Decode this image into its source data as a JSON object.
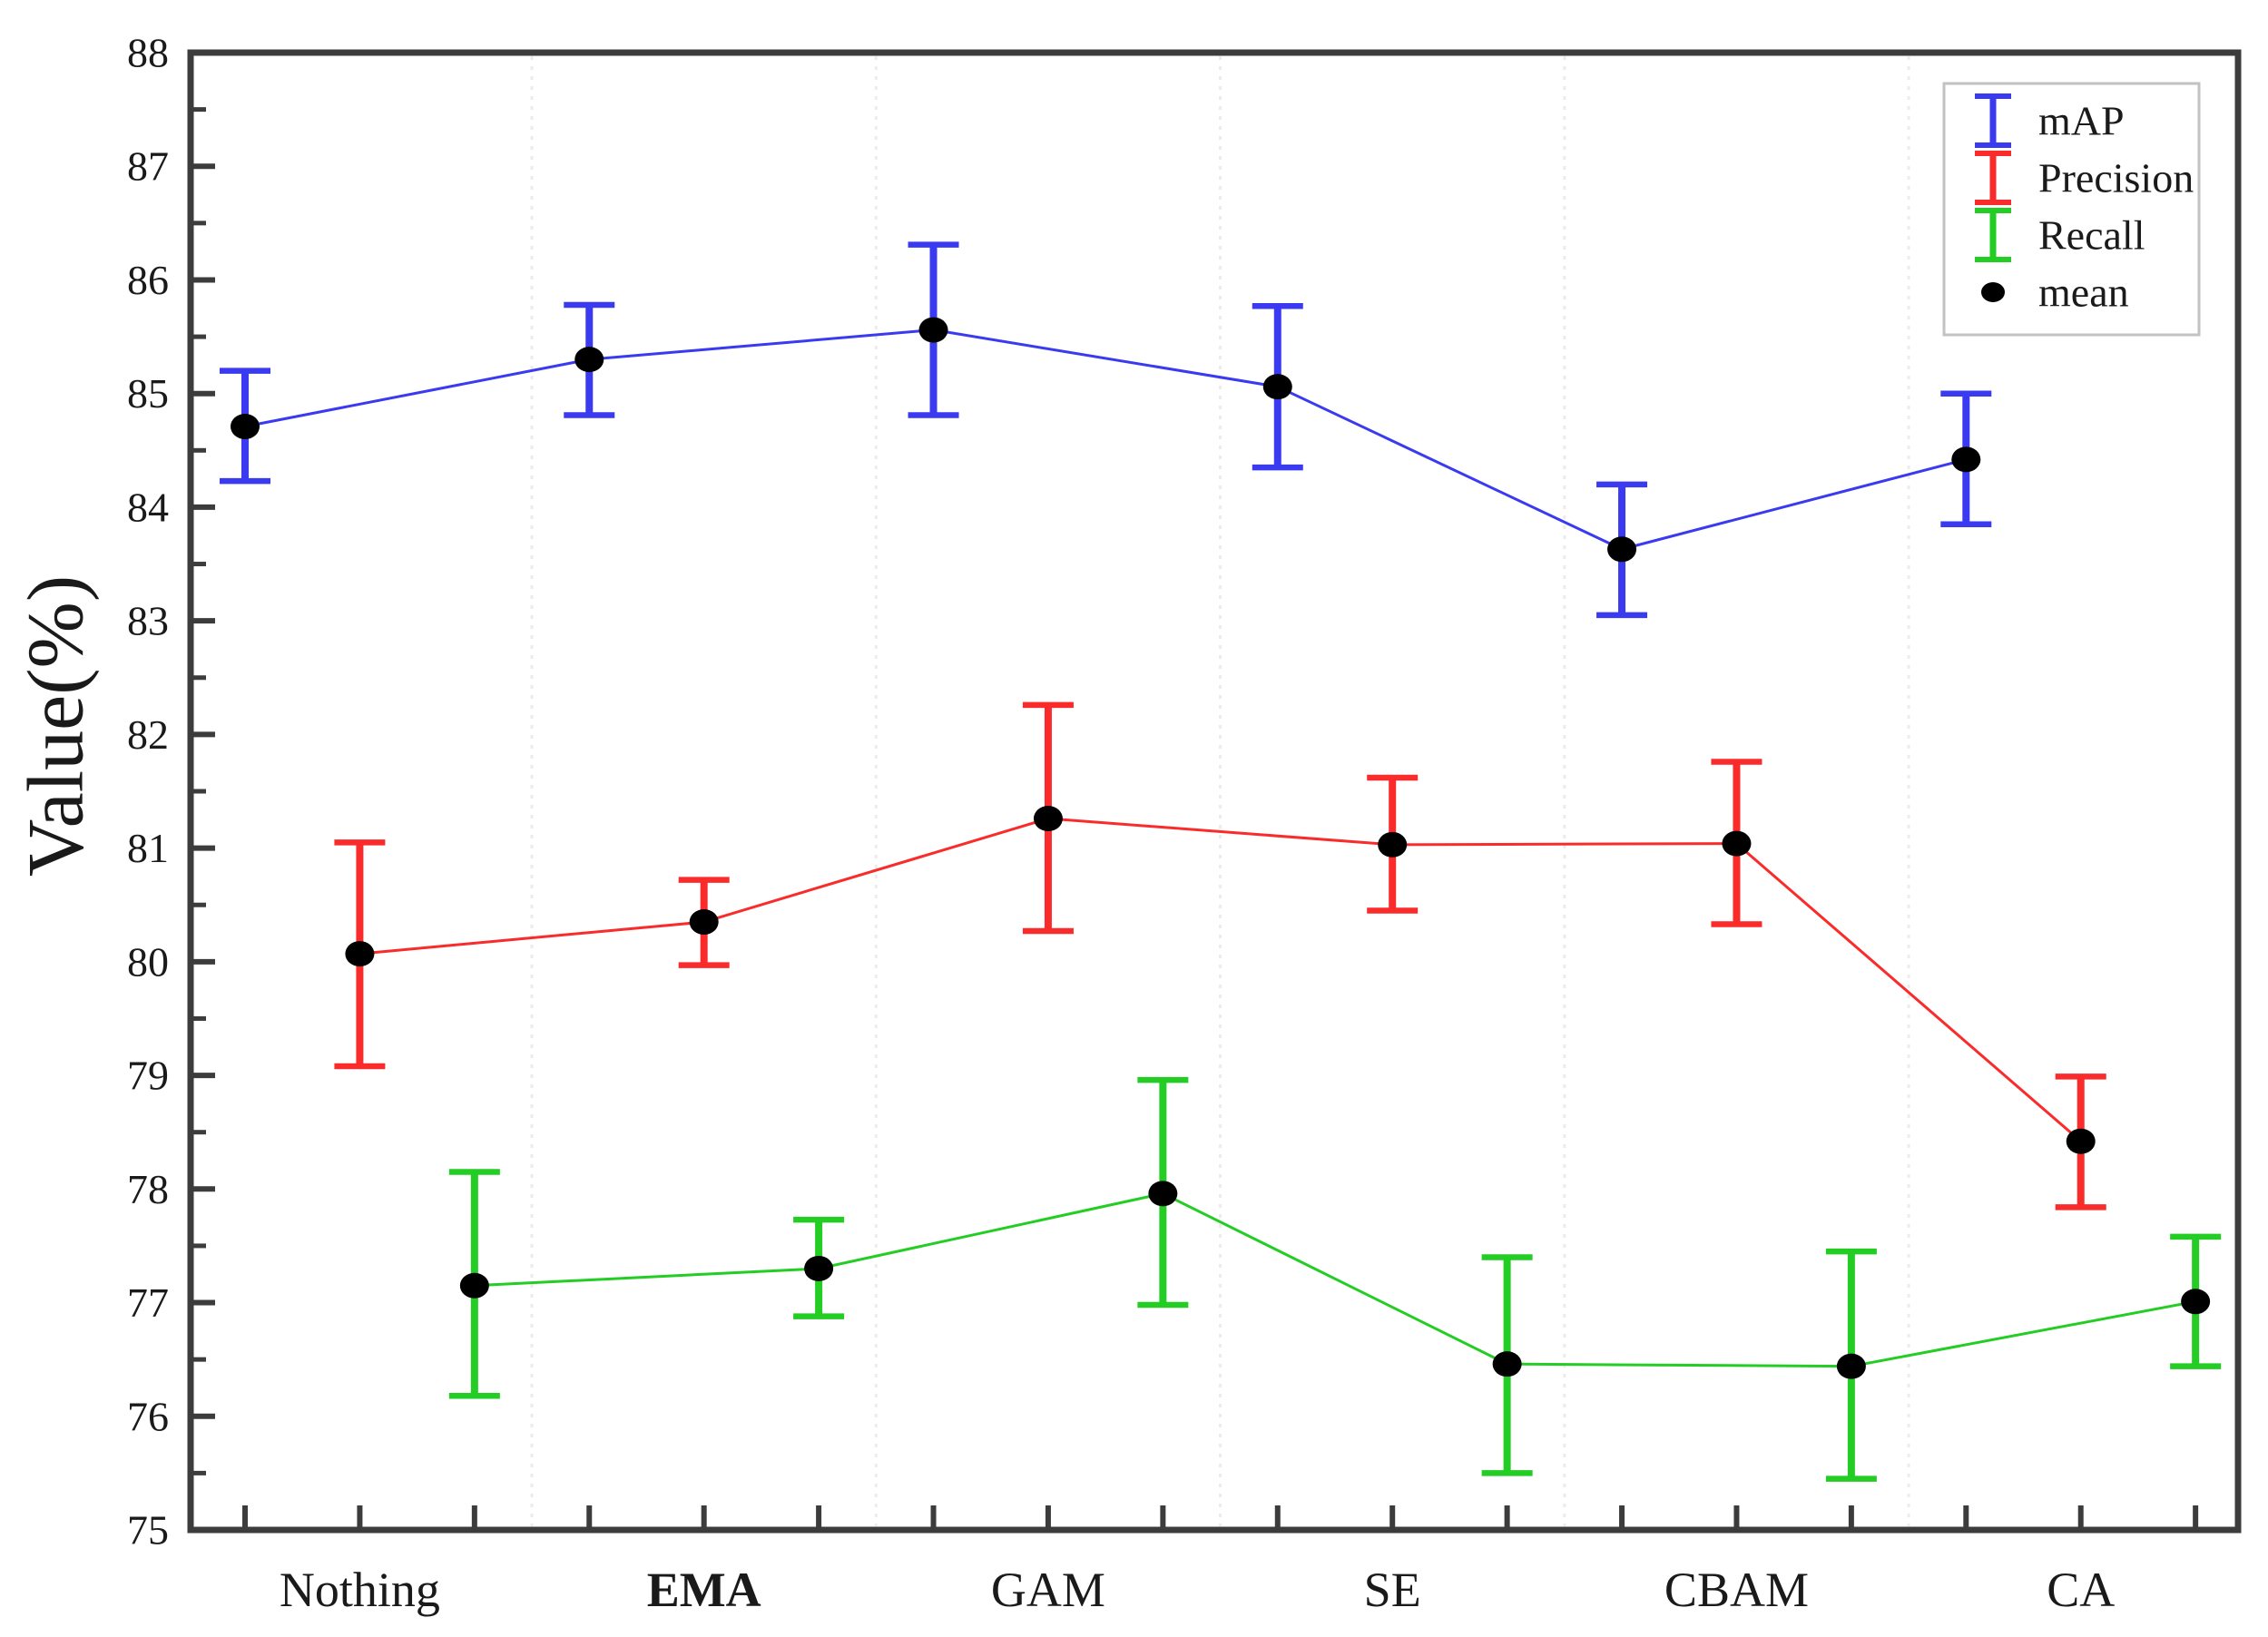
{
  "chart_data": {
    "type": "line",
    "subtype": "errorbar",
    "title": "",
    "xlabel": "",
    "ylabel": "Value(%)",
    "ylim": [
      75,
      88
    ],
    "ytick_interval": 1,
    "yminor_interval": 0.5,
    "yticks": [
      "75",
      "76",
      "77",
      "78",
      "79",
      "80",
      "81",
      "82",
      "83",
      "84",
      "85",
      "86",
      "87",
      "88"
    ],
    "categories": [
      "Nothing",
      "EMA",
      "GAM",
      "SE",
      "CBAM",
      "CA"
    ],
    "emphasized_category": "EMA",
    "grid": {
      "vertical_category_separators": true,
      "horizontal": false,
      "separator_style": "dotted"
    },
    "legend": {
      "position": "top-right",
      "entries": [
        {
          "label": "mAP",
          "color": "#3a3af0",
          "marker": "errorbar"
        },
        {
          "label": "Precision",
          "color": "#f92b2b",
          "marker": "errorbar"
        },
        {
          "label": "Recall",
          "color": "#23cd23",
          "marker": "errorbar"
        },
        {
          "label": "mean",
          "color": "#000000",
          "marker": "dot"
        }
      ]
    },
    "series": [
      {
        "name": "mAP",
        "color": "#3a3af0",
        "mean": [
          84.71,
          85.3,
          85.56,
          85.06,
          83.63,
          84.42
        ],
        "upper": [
          85.2,
          85.78,
          86.31,
          85.77,
          84.2,
          85.0
        ],
        "lower": [
          84.23,
          84.81,
          84.81,
          84.35,
          83.05,
          83.85
        ]
      },
      {
        "name": "Precision",
        "color": "#f92b2b",
        "mean": [
          80.07,
          80.35,
          81.26,
          81.03,
          81.04,
          78.42
        ],
        "upper": [
          81.05,
          80.72,
          82.26,
          81.62,
          81.76,
          78.99
        ],
        "lower": [
          79.08,
          79.97,
          80.27,
          80.45,
          80.33,
          77.84
        ]
      },
      {
        "name": "Recall",
        "color": "#23cd23",
        "mean": [
          77.15,
          77.3,
          77.96,
          76.46,
          76.44,
          77.01
        ],
        "upper": [
          78.15,
          77.73,
          78.96,
          77.4,
          77.45,
          77.58
        ],
        "lower": [
          76.18,
          76.88,
          76.98,
          75.5,
          75.45,
          76.44
        ]
      }
    ],
    "mean_marker_color": "#000000"
  },
  "style_colors": {
    "frame": "#3c3c3c",
    "text": "#1a1a1a",
    "grid": "#ececec",
    "legend_border": "#c2c2c2",
    "background": "#ffffff"
  }
}
